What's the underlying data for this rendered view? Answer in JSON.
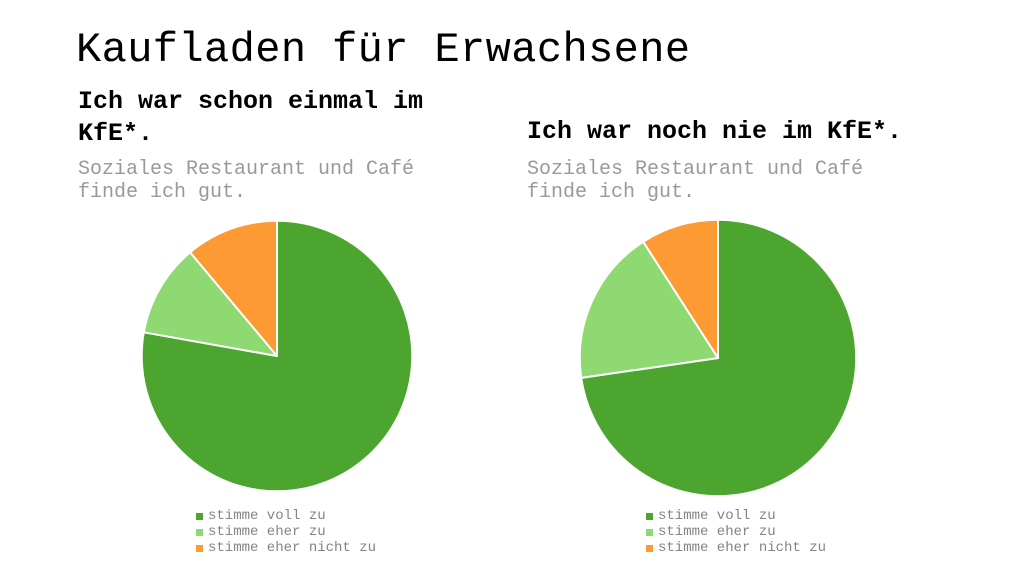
{
  "slide": {
    "title": "Kaufladen für Erwachsene",
    "background": "#ffffff"
  },
  "panels": [
    {
      "heading": "Ich war schon einmal im KfE*.",
      "subtitle": "Soziales Restaurant und Café finde ich gut."
    },
    {
      "heading": "Ich war noch nie im KfE*.",
      "subtitle": "Soziales Restaurant und Café finde ich gut."
    }
  ],
  "colors": {
    "slice_dark_green": "#4BA52E",
    "slice_light_green": "#8FD973",
    "slice_orange": "#FD9A33",
    "heading_text": "#000000",
    "subtitle_text": "#999999",
    "legend_text": "#848484",
    "slice_divider": "#FFFFFF"
  },
  "chart_data": [
    {
      "type": "pie",
      "title": "Ich war schon einmal im KfE*.",
      "subtitle": "Soziales Restaurant und Café finde ich gut.",
      "labels": [
        "stimme voll zu",
        "stimme eher zu",
        "stimme eher nicht zu"
      ],
      "values_percent": [
        77.8,
        11.1,
        11.1
      ],
      "colors": [
        "#4BA52E",
        "#8FD973",
        "#FD9A33"
      ],
      "start_angle_deg": 0,
      "direction": "clockwise",
      "legend_position": "bottom"
    },
    {
      "type": "pie",
      "title": "Ich war noch nie im KfE*.",
      "subtitle": "Soziales Restaurant und Café finde ich gut.",
      "labels": [
        "stimme voll zu",
        "stimme eher zu",
        "stimme eher nicht zu"
      ],
      "values_percent": [
        72.7,
        18.2,
        9.1
      ],
      "colors": [
        "#4BA52E",
        "#8FD973",
        "#FD9A33"
      ],
      "start_angle_deg": 0,
      "direction": "clockwise",
      "legend_position": "bottom"
    }
  ]
}
